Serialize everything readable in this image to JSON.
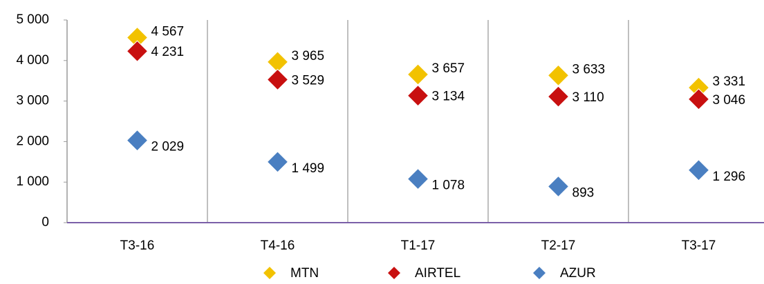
{
  "chart_data": {
    "type": "scatter",
    "categories": [
      "T3-16",
      "T4-16",
      "T1-17",
      "T2-17",
      "T3-17"
    ],
    "series": [
      {
        "name": "MTN",
        "color": "#f2c200",
        "values": [
          4567,
          3965,
          3657,
          3633,
          3331
        ],
        "value_labels": [
          "4 567",
          "3 965",
          "3 657",
          "3 633",
          "3 331"
        ]
      },
      {
        "name": "AIRTEL",
        "color": "#c81010",
        "values": [
          4231,
          3529,
          3134,
          3110,
          3046
        ],
        "value_labels": [
          "4 231",
          "3 529",
          "3 134",
          "3 110",
          "3 046"
        ]
      },
      {
        "name": "AZUR",
        "color": "#4a7fc1",
        "values": [
          2029,
          1499,
          1078,
          893,
          1296
        ],
        "value_labels": [
          "2 029",
          "1 499",
          "1 078",
          "893",
          "1 296"
        ]
      }
    ],
    "ylim": [
      0,
      5000
    ],
    "yticks": [
      0,
      {
        "value": 1000,
        "label": "1 000"
      },
      {
        "value": 2000,
        "label": "2 000"
      },
      {
        "value": 3000,
        "label": "3 000"
      },
      {
        "value": 4000,
        "label": "4 000"
      },
      {
        "value": 5000,
        "label": "5 000"
      }
    ],
    "legend": "bottom"
  }
}
